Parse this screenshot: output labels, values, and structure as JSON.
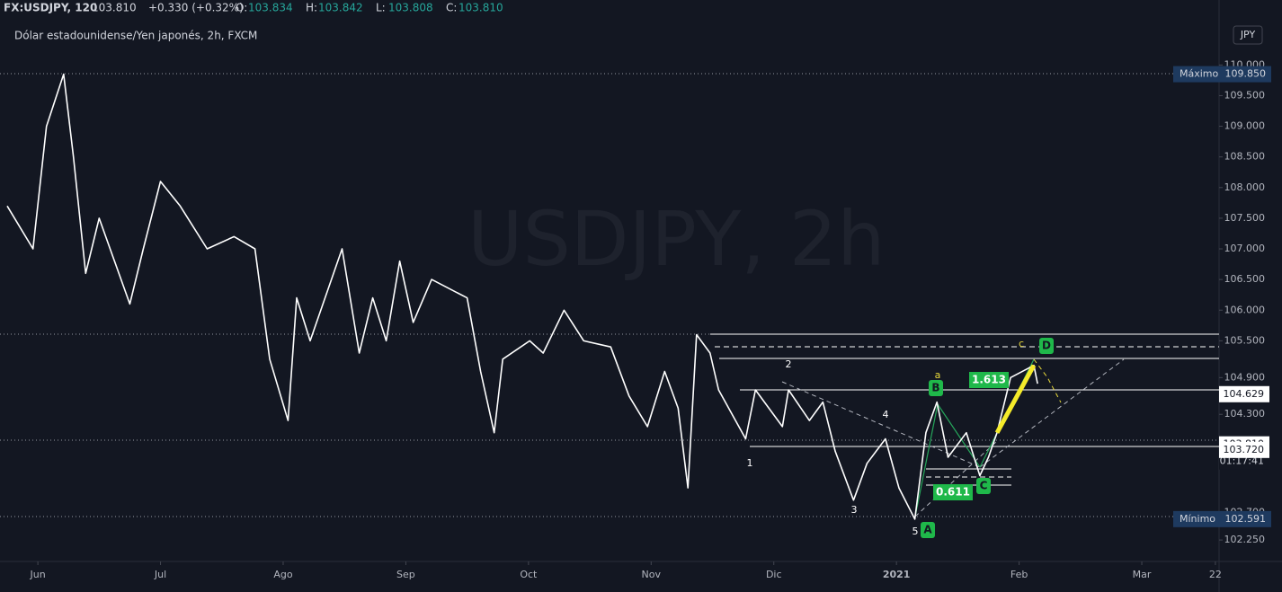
{
  "header": {
    "symbol": "FX:USDJPY, 120",
    "last": "103.810",
    "change": "+0.330 (+0.32%)",
    "ohlc": [
      {
        "key": "O:",
        "val": "103.834"
      },
      {
        "key": "H:",
        "val": "103.842"
      },
      {
        "key": "L:",
        "val": "103.808"
      },
      {
        "key": "C:",
        "val": "103.810"
      }
    ]
  },
  "chart_data": {
    "type": "line",
    "title": "Dólar estadounidense/Yen japonés, 2h, FXCM",
    "watermark": "USDJPY, 2h",
    "currency": "JPY",
    "x": [
      -0.25,
      -0.04,
      0.07,
      0.21,
      0.29,
      0.39,
      0.5,
      0.75,
      0.86,
      1.0,
      1.16,
      1.38,
      1.6,
      1.77,
      1.89,
      2.04,
      2.11,
      2.22,
      2.48,
      2.62,
      2.73,
      2.84,
      2.95,
      3.06,
      3.21,
      3.5,
      3.61,
      3.72,
      3.79,
      4.01,
      4.12,
      4.29,
      4.45,
      4.67,
      4.82,
      4.97,
      5.11,
      5.22,
      5.3,
      5.37,
      5.48,
      5.55,
      5.77,
      5.85,
      6.07,
      6.12,
      6.29,
      6.4,
      6.5,
      6.65,
      6.76,
      6.91,
      7.02,
      7.15,
      7.24,
      7.33,
      7.42,
      7.57,
      7.68,
      7.75,
      7.82,
      7.93,
      8.12,
      8.15
    ],
    "series": [
      {
        "color": "#ffffff",
        "values": [
          107.7,
          107.0,
          109.0,
          109.85,
          108.5,
          106.6,
          107.5,
          106.1,
          107.0,
          108.1,
          107.7,
          107.0,
          107.2,
          107.0,
          105.2,
          104.2,
          106.2,
          105.5,
          107.0,
          105.3,
          106.2,
          105.5,
          106.8,
          105.8,
          106.5,
          106.2,
          105.0,
          104.0,
          105.2,
          105.5,
          105.3,
          106.0,
          105.5,
          105.4,
          104.6,
          104.1,
          105.0,
          104.4,
          103.1,
          105.6,
          105.3,
          104.7,
          103.9,
          104.7,
          104.1,
          104.7,
          104.2,
          104.5,
          103.7,
          102.9,
          103.5,
          103.9,
          103.1,
          102.59,
          104.0,
          104.5,
          103.6,
          104.0,
          103.3,
          103.6,
          104.0,
          104.9,
          105.1,
          104.8
        ]
      }
    ],
    "xlim": [
      -0.25,
      9.63
    ],
    "xticks": [
      {
        "value": 0,
        "label": "Jun"
      },
      {
        "value": 1,
        "label": "Jul"
      },
      {
        "value": 2,
        "label": "Ago"
      },
      {
        "value": 3,
        "label": "Sep"
      },
      {
        "value": 4,
        "label": "Oct"
      },
      {
        "value": 5,
        "label": "Nov"
      },
      {
        "value": 6,
        "label": "Dic"
      },
      {
        "value": 7,
        "label": "2021"
      },
      {
        "value": 8,
        "label": "Feb"
      },
      {
        "value": 9,
        "label": "Mar"
      },
      {
        "value": 9.6,
        "label": "22"
      }
    ],
    "ylim": [
      101.9,
      111.06
    ],
    "yticks": [
      {
        "value": 102.25,
        "label": "102.250"
      },
      {
        "value": 102.7,
        "label": "102.700"
      },
      {
        "value": 104.3,
        "label": "104.300"
      },
      {
        "value": 104.9,
        "label": "104.900"
      },
      {
        "value": 105.5,
        "label": "105.500"
      },
      {
        "value": 106,
        "label": "106.000"
      },
      {
        "value": 106.5,
        "label": "106.500"
      },
      {
        "value": 107,
        "label": "107.000"
      },
      {
        "value": 107.5,
        "label": "107.500"
      },
      {
        "value": 108,
        "label": "108.000"
      },
      {
        "value": 108.5,
        "label": "108.500"
      },
      {
        "value": 109,
        "label": "109.000"
      },
      {
        "value": 109.5,
        "label": "109.500"
      },
      {
        "value": 110,
        "label": "110.000"
      }
    ],
    "price_labels": [
      {
        "name": "Máximo",
        "value": 109.85,
        "label": "109.850"
      },
      {
        "value": 104.629,
        "label": "104.629"
      },
      {
        "value": 103.81,
        "label": "103.810",
        "countdown": "01:17:41"
      },
      {
        "value": 103.72,
        "label": "103.720"
      },
      {
        "name": "Mínimo",
        "value": 102.591,
        "label": "102.591"
      }
    ],
    "wave_labels": [
      "1",
      "2",
      "3",
      "4",
      "5",
      "a",
      "c"
    ],
    "points": [
      "A",
      "B",
      "C",
      "D"
    ],
    "ratios": [
      "1.613",
      "0.611"
    ]
  }
}
